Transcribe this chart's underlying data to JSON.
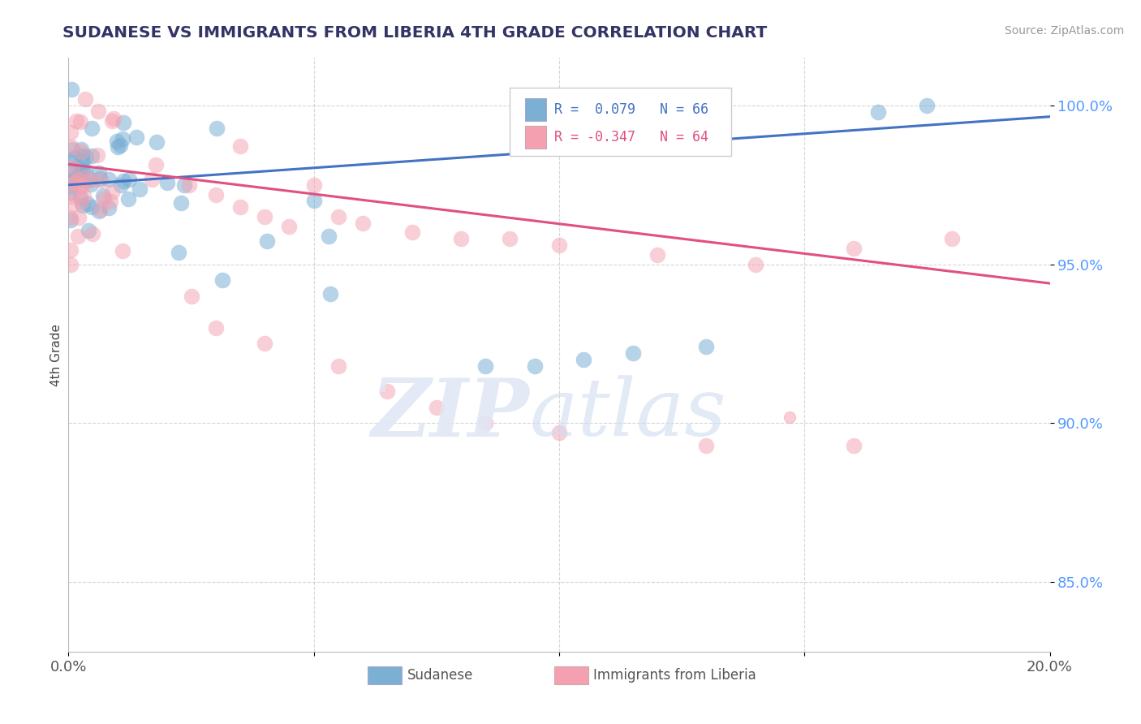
{
  "title": "SUDANESE VS IMMIGRANTS FROM LIBERIA 4TH GRADE CORRELATION CHART",
  "source": "Source: ZipAtlas.com",
  "ylabel": "4th Grade",
  "xlim": [
    0.0,
    0.2
  ],
  "ylim": [
    0.828,
    1.015
  ],
  "xticks": [
    0.0,
    0.05,
    0.1,
    0.15,
    0.2
  ],
  "xticklabels": [
    "0.0%",
    "",
    "",
    "",
    "20.0%"
  ],
  "yticks": [
    0.85,
    0.9,
    0.95,
    1.0
  ],
  "yticklabels": [
    "85.0%",
    "90.0%",
    "95.0%",
    "100.0%"
  ],
  "blue_color": "#7BAFD4",
  "pink_color": "#F4A0B0",
  "blue_line_color": "#4472C4",
  "pink_line_color": "#E05080",
  "blue_R": 0.079,
  "pink_R": -0.347,
  "blue_N": 66,
  "pink_N": 64,
  "blue_line_x0": 0.0,
  "blue_line_y0": 0.975,
  "blue_line_x1": 0.2,
  "blue_line_y1": 0.9965,
  "pink_line_x0": 0.0,
  "pink_line_y0": 0.9815,
  "pink_line_x1": 0.2,
  "pink_line_y1": 0.944
}
